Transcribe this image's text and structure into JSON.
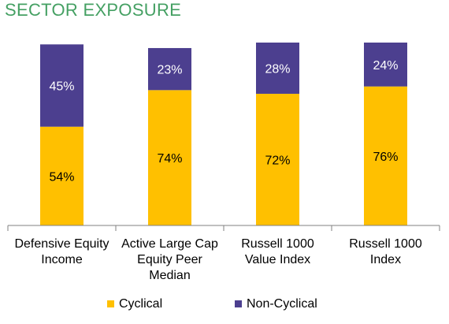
{
  "colors": {
    "title": "#45a063",
    "cyclical": "#ffc000",
    "non_cyclical": "#4c3f8f",
    "axis": "#808080"
  },
  "chart_data": {
    "type": "bar",
    "stacked": true,
    "title": "SECTOR EXPOSURE",
    "categories": [
      [
        "Defensive Equity",
        "Income"
      ],
      [
        "Active Large Cap",
        "Equity Peer",
        "Median"
      ],
      [
        "Russell 1000",
        "Value Index"
      ],
      [
        "Russell 1000",
        "Index"
      ]
    ],
    "series": [
      {
        "name": "Cyclical",
        "values": [
          54,
          74,
          72,
          76
        ],
        "labels": [
          "54%",
          "74%",
          "72%",
          "76%"
        ],
        "color": "#ffc000"
      },
      {
        "name": "Non-Cyclical",
        "values": [
          45,
          23,
          28,
          24
        ],
        "labels": [
          "45%",
          "23%",
          "28%",
          "24%"
        ],
        "color": "#4c3f8f"
      }
    ],
    "ylim": [
      0,
      100
    ],
    "grid": false,
    "legend_position": "bottom"
  }
}
